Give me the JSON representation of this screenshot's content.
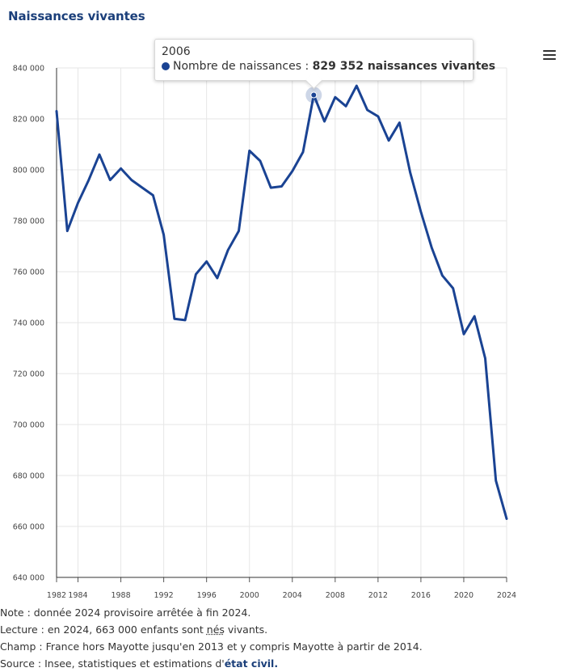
{
  "title": "Naissances vivantes",
  "menu_icon": "hamburger-menu-icon",
  "colors": {
    "line": "#1a4393",
    "title": "#1b3f7a",
    "grid": "#e6e6e6",
    "axis": "#333333"
  },
  "tooltip": {
    "year": "2006",
    "series_label": "Nombre de naissances : ",
    "value_text": "829 352 naissances vivantes"
  },
  "notes": {
    "note": "Note : donnée 2024 provisoire arrêtée à fin 2024.",
    "lecture_a": "Lecture : en 2024, 663 000 enfants sont ",
    "lecture_nes": "nés",
    "lecture_b": " vivants.",
    "champ": "Champ : France hors Mayotte jusqu'en 2013 et y compris Mayotte à partir de 2014.",
    "source_a": "Source : Insee, statistiques et estimations d'",
    "source_link": "état civil."
  },
  "chart_data": {
    "type": "line",
    "title": "Naissances vivantes",
    "xlabel": "",
    "ylabel": "",
    "ylim": [
      640000,
      840000
    ],
    "yticks": [
      640000,
      660000,
      680000,
      700000,
      720000,
      740000,
      760000,
      780000,
      800000,
      820000,
      840000
    ],
    "ytick_labels": [
      "640 000",
      "660 000",
      "680 000",
      "700 000",
      "720 000",
      "740 000",
      "760 000",
      "780 000",
      "800 000",
      "820 000",
      "840 000"
    ],
    "xlim": [
      1982,
      2024
    ],
    "xticks": [
      1982,
      1984,
      1988,
      1992,
      1996,
      2000,
      2004,
      2008,
      2012,
      2016,
      2020,
      2024
    ],
    "xtick_labels": [
      "1982",
      "1984",
      "1988",
      "1992",
      "1996",
      "2000",
      "2004",
      "2008",
      "2012",
      "2016",
      "2020",
      "2024"
    ],
    "grid": true,
    "legend": "none",
    "highlighted_point": {
      "x": 2006,
      "y": 829352
    },
    "series": [
      {
        "x": [
          1982,
          1983,
          1984,
          1985,
          1986,
          1987,
          1988,
          1989,
          1990,
          1991,
          1992,
          1993,
          1994,
          1995,
          1996,
          1997,
          1998,
          1999,
          2000,
          2001,
          2002,
          2003,
          2004,
          2005,
          2006,
          2007,
          2008,
          2009,
          2010,
          2011,
          2012,
          2013,
          2014,
          2015,
          2016,
          2017,
          2018,
          2019,
          2020,
          2021,
          2022,
          2023,
          2024
        ],
        "values": [
          823000,
          776000,
          787000,
          796000,
          806000,
          796000,
          800500,
          796000,
          793000,
          790000,
          774500,
          741500,
          741000,
          759000,
          764000,
          757500,
          768500,
          776000,
          807500,
          803500,
          793000,
          793500,
          799500,
          807000,
          829352,
          819000,
          828500,
          825000,
          833000,
          823500,
          821000,
          811500,
          818500,
          799000,
          783500,
          769500,
          758500,
          753500,
          735500,
          742500,
          726000,
          678000,
          663000
        ]
      }
    ]
  }
}
